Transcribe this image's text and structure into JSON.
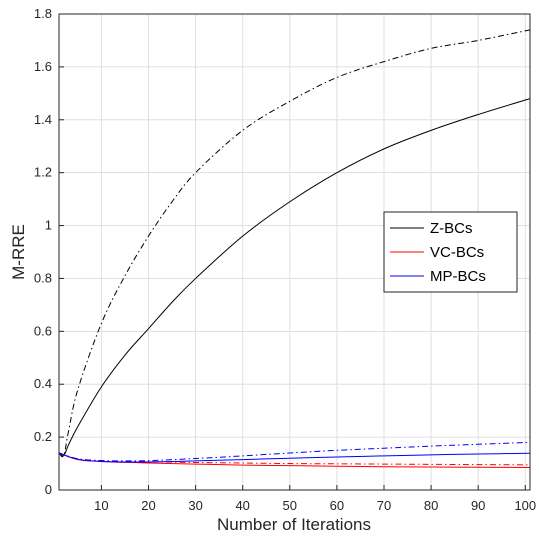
{
  "chart_data": {
    "type": "line",
    "xlabel": "Number of Iterations",
    "ylabel": "M-RRE",
    "xlim": [
      1,
      101
    ],
    "ylim": [
      0,
      1.8
    ],
    "xticks": [
      10,
      20,
      30,
      40,
      50,
      60,
      70,
      80,
      90,
      100
    ],
    "yticks": [
      0,
      0.2,
      0.4,
      0.6,
      0.8,
      1,
      1.2,
      1.4,
      1.6,
      1.8
    ],
    "grid": true,
    "legend_position": "middle-right",
    "legend": [
      {
        "label": "Z-BCs",
        "color": "#000000"
      },
      {
        "label": "VC-BCs",
        "color": "#ff0000"
      },
      {
        "label": "MP-BCs",
        "color": "#0000ff"
      }
    ],
    "series": [
      {
        "name": "Z-BCs",
        "style": "solid",
        "color": "#000000",
        "x": [
          1,
          2,
          3,
          5,
          10,
          15,
          20,
          25,
          30,
          40,
          50,
          60,
          70,
          80,
          90,
          101
        ],
        "y": [
          0.14,
          0.13,
          0.17,
          0.24,
          0.39,
          0.51,
          0.61,
          0.71,
          0.8,
          0.96,
          1.09,
          1.2,
          1.29,
          1.36,
          1.42,
          1.48
        ]
      },
      {
        "style": "dashdot",
        "color": "#000000",
        "x": [
          1,
          2,
          3,
          5,
          10,
          15,
          20,
          25,
          30,
          40,
          50,
          60,
          70,
          80,
          90,
          101
        ],
        "y": [
          0.14,
          0.13,
          0.22,
          0.38,
          0.63,
          0.81,
          0.96,
          1.09,
          1.2,
          1.36,
          1.47,
          1.56,
          1.62,
          1.67,
          1.7,
          1.74
        ]
      },
      {
        "name": "VC-BCs",
        "style": "solid",
        "color": "#ff0000",
        "x": [
          1,
          5,
          10,
          20,
          30,
          40,
          50,
          60,
          70,
          80,
          90,
          101
        ],
        "y": [
          0.14,
          0.115,
          0.108,
          0.102,
          0.098,
          0.094,
          0.092,
          0.09,
          0.088,
          0.087,
          0.086,
          0.085
        ]
      },
      {
        "style": "dashdot",
        "color": "#ff0000",
        "x": [
          1,
          5,
          10,
          20,
          30,
          40,
          50,
          60,
          70,
          80,
          90,
          101
        ],
        "y": [
          0.14,
          0.118,
          0.111,
          0.107,
          0.104,
          0.102,
          0.1,
          0.099,
          0.098,
          0.097,
          0.096,
          0.095
        ]
      },
      {
        "name": "MP-BCs",
        "style": "solid",
        "color": "#0000ff",
        "x": [
          1,
          5,
          10,
          15,
          20,
          30,
          40,
          50,
          60,
          70,
          80,
          90,
          101
        ],
        "y": [
          0.14,
          0.116,
          0.108,
          0.106,
          0.106,
          0.11,
          0.115,
          0.12,
          0.125,
          0.129,
          0.133,
          0.136,
          0.139
        ]
      },
      {
        "style": "dashdot",
        "color": "#0000ff",
        "x": [
          1,
          5,
          10,
          15,
          20,
          30,
          40,
          50,
          60,
          70,
          80,
          90,
          101
        ],
        "y": [
          0.14,
          0.118,
          0.111,
          0.11,
          0.111,
          0.119,
          0.129,
          0.14,
          0.15,
          0.158,
          0.166,
          0.173,
          0.18
        ]
      }
    ]
  }
}
